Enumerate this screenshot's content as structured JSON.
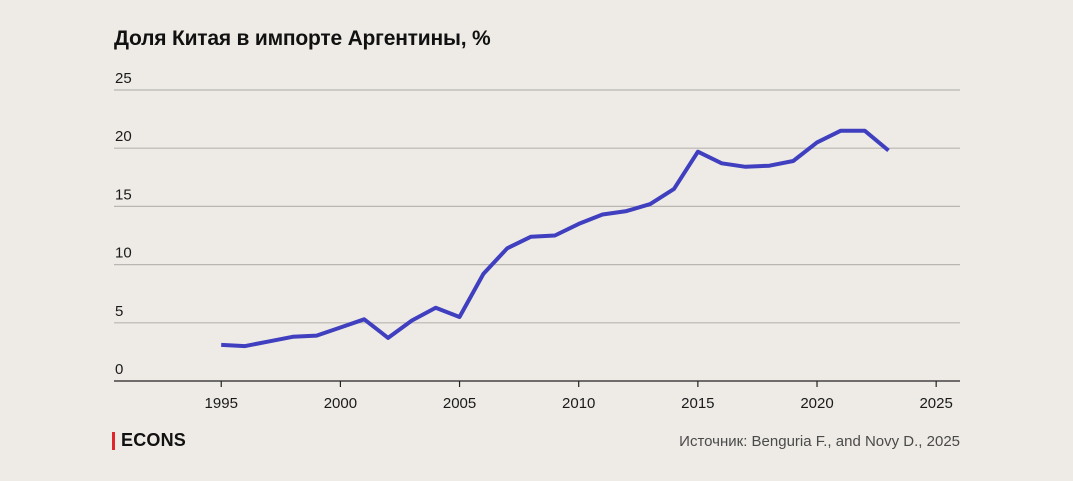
{
  "header": {
    "title": "Доля Китая в импорте Аргентины, %"
  },
  "footer": {
    "brand": "ECONS",
    "source": "Источник: Benguria F., and Novy D., 2025"
  },
  "colors": {
    "line": "#3f3fbf",
    "grid": "#b9b6b1",
    "axis": "#222222",
    "brand_accent": "#e0262b"
  },
  "chart_data": {
    "type": "line",
    "title": "Доля Китая в импорте Аргентины, %",
    "xlabel": "",
    "ylabel": "",
    "xlim": [
      1990.5,
      2026
    ],
    "ylim": [
      0,
      25
    ],
    "xticks": [
      1995,
      2000,
      2005,
      2010,
      2015,
      2020,
      2025
    ],
    "yticks": [
      0,
      5,
      10,
      15,
      20,
      25
    ],
    "grid": true,
    "x": [
      1995,
      1996,
      1997,
      1998,
      1999,
      2000,
      2001,
      2002,
      2003,
      2004,
      2005,
      2006,
      2007,
      2008,
      2009,
      2010,
      2011,
      2012,
      2013,
      2014,
      2015,
      2016,
      2017,
      2018,
      2019,
      2020,
      2021,
      2022,
      2023
    ],
    "series": [
      {
        "values": [
          3.1,
          3.0,
          3.4,
          3.8,
          3.9,
          4.6,
          5.3,
          3.7,
          5.2,
          6.3,
          5.5,
          9.2,
          11.4,
          12.4,
          12.5,
          13.5,
          14.3,
          14.6,
          15.2,
          16.5,
          19.7,
          18.7,
          18.4,
          18.5,
          18.9,
          20.5,
          21.5,
          21.5,
          19.8
        ]
      }
    ]
  }
}
